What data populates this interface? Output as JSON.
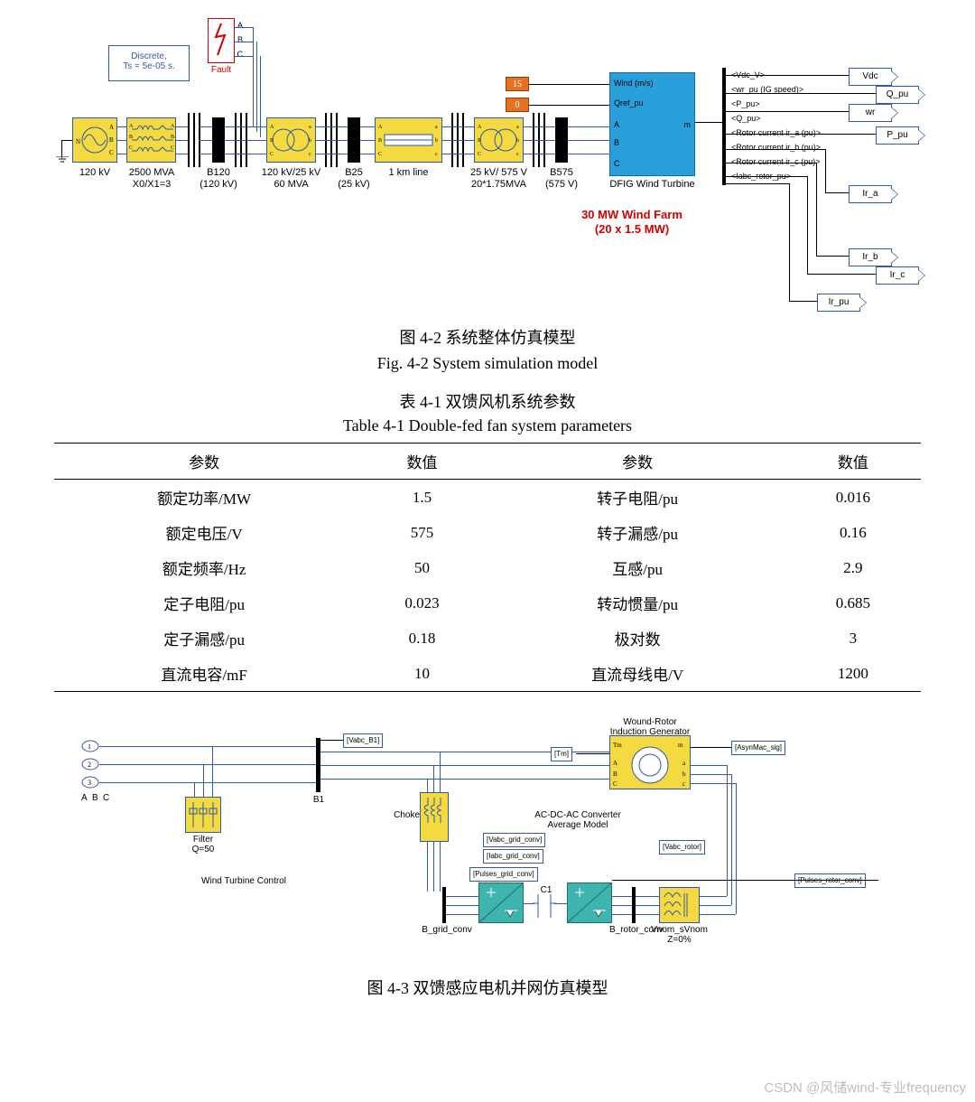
{
  "fig1": {
    "caption_cn": "图 4-2  系统整体仿真模型",
    "caption_en": "Fig. 4-2 System simulation model",
    "discrete_box": "Discrete,\nTs = 5e-05 s.",
    "fault_label": "Fault",
    "fault_ports": [
      "A",
      "B",
      "C"
    ],
    "const1": "15",
    "const2": "0",
    "dfig_inputs": [
      "Wind (m/s)",
      "Qref_pu",
      "A",
      "B",
      "C"
    ],
    "dfig_out": "m",
    "dfig_label": "DFIG Wind Turbine",
    "wind_farm_line1": "30 MW Wind Farm",
    "wind_farm_line2": "(20 x 1.5 MW)",
    "demux_labels": [
      "<Vdc_V>",
      "<wr_pu (IG speed)>",
      "<P_pu>",
      "<Q_pu>",
      "<Rotor current ir_a (pu)>",
      "<Rotor current ir_b (pu)>",
      "<Rotor current ir_c (pu)>",
      "<Iabc_rotor_pu>"
    ],
    "scopes": [
      "Vdc",
      "Q_pu",
      "wr",
      "P_pu",
      "Ir_a",
      "Ir_b",
      "Ir_c",
      "Ir_pu"
    ],
    "chain": [
      {
        "label1": "120 kV",
        "label2": ""
      },
      {
        "label1": "2500 MVA",
        "label2": "X0/X1=3"
      },
      {
        "label1": "B120",
        "label2": "(120 kV)"
      },
      {
        "label1": "120 kV/25 kV",
        "label2": "60 MVA"
      },
      {
        "label1": "B25",
        "label2": "(25 kV)"
      },
      {
        "label1": "1 km line",
        "label2": ""
      },
      {
        "label1": "25 kV/ 575 V",
        "label2": "20*1.75MVA"
      },
      {
        "label1": "B575",
        "label2": "(575 V)"
      }
    ]
  },
  "table": {
    "title_cn": "表 4-1  双馈风机系统参数",
    "title_en": "Table 4-1 Double-fed fan system parameters",
    "headers": [
      "参数",
      "数值",
      "参数",
      "数值"
    ],
    "rows": [
      [
        "额定功率/MW",
        "1.5",
        "转子电阻/pu",
        "0.016"
      ],
      [
        "额定电压/V",
        "575",
        "转子漏感/pu",
        "0.16"
      ],
      [
        "额定频率/Hz",
        "50",
        "互感/pu",
        "2.9"
      ],
      [
        "定子电阻/pu",
        "0.023",
        "转动惯量/pu",
        "0.685"
      ],
      [
        "定子漏感/pu",
        "0.18",
        "极对数",
        "3"
      ],
      [
        "直流电容/mF",
        "10",
        "直流母线电/V",
        "1200"
      ]
    ]
  },
  "fig2": {
    "caption_cn": "图 4-3 双馈感应电机并网仿真模型",
    "ports": [
      "A",
      "B",
      "C"
    ],
    "port_nums": [
      "1",
      "2",
      "3"
    ],
    "filter_label": "Filter\nQ=50",
    "wtc_label": "Wind Turbine Control",
    "b1_label": "B1",
    "vabc_b1": "[Vabc_B1]",
    "choke_label": "Choke",
    "tm": "[Tm]",
    "asynmac": "[AsynMac_sig]",
    "wrg_label": "Wound-Rotor\nInduction Generator",
    "conv_label": "AC-DC-AC Converter\nAverage Model",
    "vabc_grid": "[Vabc_grid_conv]",
    "iabc_grid": "[Iabc_grid_conv]",
    "pulses_grid": "[Pulses_grid_conv]",
    "vabc_rotor": "[Vabc_rotor]",
    "pulses_rotor": "[Pulses_rotor_conv]",
    "bgrid_label": "B_grid_conv",
    "brotor_label": "B_rotor_conv",
    "vnom_label": "Vnom_sVnom\nZ=0%",
    "c1_label": "C1"
  },
  "watermark": "CSDN @风储wind-专业frequency"
}
